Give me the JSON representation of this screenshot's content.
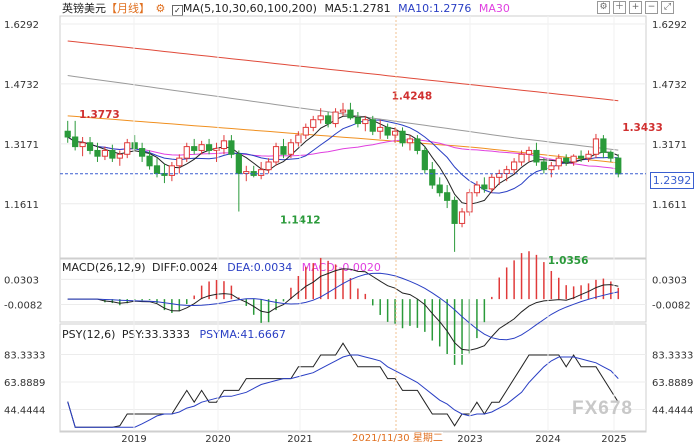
{
  "header": {
    "symbol": "英镑美元",
    "period": "【月线】",
    "ma_label": "MA(5,10,30,60,100,200)",
    "ma5": "MA5:1.2781",
    "ma10": "MA10:1.2776",
    "ma30": "MA30"
  },
  "macd_header": {
    "name": "MACD(26,12,9)",
    "diff": "DIFF:0.0024",
    "dea": "DEA:0.0034",
    "macd": "MACD:-0.0020"
  },
  "psy_header": {
    "name": "PSY(12,6)",
    "psy": "PSY:33.3333",
    "psyma": "PSYMA:41.6667"
  },
  "watermark": "FX678",
  "crosshair_date": "2021/11/30 星期二",
  "icons": [
    "settings-icon",
    "crosshair-icon",
    "zoom-in-icon",
    "zoom-out-icon",
    "expand-icon"
  ],
  "colors": {
    "up": "#e03a3a",
    "down": "#2a9a3a",
    "ma5": "#222222",
    "ma10": "#2a3fc4",
    "ma30": "#e040e0",
    "ma60": "#f09020",
    "ma100": "#9a9a9a",
    "ma200": "#e04a3a"
  },
  "chart_data": [
    {
      "type": "candlestick",
      "title": "英镑美元【月线】",
      "y_ticks": [
        "1.6292",
        "1.4732",
        "1.3171",
        "1.1611"
      ],
      "ylim": [
        1.02,
        1.65
      ],
      "x_ticks": [
        "2019",
        "2020",
        "2021",
        "2023",
        "2024",
        "2025"
      ],
      "current_price": "1.2392",
      "annotations": [
        {
          "label": "1.3773",
          "value": 1.3773,
          "index": 1
        },
        {
          "label": "1.1412",
          "value": 1.1412,
          "index": 28
        },
        {
          "label": "1.4248",
          "value": 1.4248,
          "index": 43
        },
        {
          "label": "1.0356",
          "value": 1.0356,
          "index": 64
        },
        {
          "label": "1.3433",
          "value": 1.3433,
          "index": 92
        }
      ],
      "series": [
        {
          "name": "MA5",
          "value": "1.2781"
        },
        {
          "name": "MA10",
          "value": "1.2776"
        },
        {
          "name": "MA30"
        }
      ],
      "ohlc": [
        [
          1.35,
          1.377,
          1.32,
          1.335
        ],
        [
          1.335,
          1.377,
          1.3,
          1.31
        ],
        [
          1.31,
          1.335,
          1.285,
          1.32
        ],
        [
          1.32,
          1.335,
          1.29,
          1.3
        ],
        [
          1.3,
          1.32,
          1.27,
          1.285
        ],
        [
          1.285,
          1.31,
          1.275,
          1.3
        ],
        [
          1.3,
          1.315,
          1.27,
          1.28
        ],
        [
          1.28,
          1.3,
          1.26,
          1.29
        ],
        [
          1.29,
          1.33,
          1.28,
          1.32
        ],
        [
          1.32,
          1.34,
          1.3,
          1.305
        ],
        [
          1.305,
          1.32,
          1.27,
          1.285
        ],
        [
          1.285,
          1.3,
          1.25,
          1.26
        ],
        [
          1.26,
          1.28,
          1.23,
          1.24
        ],
        [
          1.24,
          1.265,
          1.215,
          1.235
        ],
        [
          1.235,
          1.27,
          1.22,
          1.26
        ],
        [
          1.26,
          1.29,
          1.24,
          1.28
        ],
        [
          1.28,
          1.32,
          1.27,
          1.31
        ],
        [
          1.31,
          1.33,
          1.29,
          1.3
        ],
        [
          1.3,
          1.325,
          1.29,
          1.315
        ],
        [
          1.315,
          1.33,
          1.29,
          1.3
        ],
        [
          1.3,
          1.32,
          1.27,
          1.305
        ],
        [
          1.305,
          1.34,
          1.29,
          1.325
        ],
        [
          1.325,
          1.34,
          1.28,
          1.29
        ],
        [
          1.29,
          1.3,
          1.141,
          1.24
        ],
        [
          1.24,
          1.26,
          1.22,
          1.245
        ],
        [
          1.245,
          1.26,
          1.23,
          1.235
        ],
        [
          1.235,
          1.27,
          1.225,
          1.25
        ],
        [
          1.25,
          1.28,
          1.24,
          1.27
        ],
        [
          1.27,
          1.32,
          1.26,
          1.31
        ],
        [
          1.31,
          1.33,
          1.28,
          1.29
        ],
        [
          1.29,
          1.33,
          1.28,
          1.32
        ],
        [
          1.32,
          1.35,
          1.31,
          1.34
        ],
        [
          1.34,
          1.37,
          1.33,
          1.36
        ],
        [
          1.36,
          1.39,
          1.35,
          1.38
        ],
        [
          1.38,
          1.41,
          1.37,
          1.39
        ],
        [
          1.39,
          1.4,
          1.36,
          1.37
        ],
        [
          1.37,
          1.41,
          1.36,
          1.4
        ],
        [
          1.4,
          1.424,
          1.39,
          1.405
        ],
        [
          1.405,
          1.424,
          1.38,
          1.385
        ],
        [
          1.385,
          1.4,
          1.36,
          1.37
        ],
        [
          1.37,
          1.39,
          1.35,
          1.38
        ],
        [
          1.38,
          1.39,
          1.34,
          1.35
        ],
        [
          1.35,
          1.38,
          1.33,
          1.36
        ],
        [
          1.36,
          1.37,
          1.33,
          1.34
        ],
        [
          1.34,
          1.36,
          1.32,
          1.35
        ],
        [
          1.35,
          1.36,
          1.31,
          1.32
        ],
        [
          1.32,
          1.34,
          1.3,
          1.33
        ],
        [
          1.33,
          1.34,
          1.29,
          1.3
        ],
        [
          1.3,
          1.31,
          1.24,
          1.25
        ],
        [
          1.25,
          1.27,
          1.2,
          1.21
        ],
        [
          1.21,
          1.23,
          1.18,
          1.19
        ],
        [
          1.19,
          1.21,
          1.15,
          1.17
        ],
        [
          1.17,
          1.18,
          1.036,
          1.11
        ],
        [
          1.11,
          1.15,
          1.1,
          1.14
        ],
        [
          1.14,
          1.2,
          1.13,
          1.19
        ],
        [
          1.19,
          1.22,
          1.18,
          1.21
        ],
        [
          1.21,
          1.23,
          1.19,
          1.2
        ],
        [
          1.2,
          1.24,
          1.19,
          1.23
        ],
        [
          1.23,
          1.25,
          1.21,
          1.24
        ],
        [
          1.24,
          1.26,
          1.22,
          1.25
        ],
        [
          1.25,
          1.28,
          1.24,
          1.27
        ],
        [
          1.27,
          1.3,
          1.26,
          1.29
        ],
        [
          1.29,
          1.31,
          1.27,
          1.3
        ],
        [
          1.3,
          1.32,
          1.26,
          1.27
        ],
        [
          1.27,
          1.28,
          1.24,
          1.25
        ],
        [
          1.25,
          1.27,
          1.23,
          1.26
        ],
        [
          1.26,
          1.29,
          1.25,
          1.28
        ],
        [
          1.28,
          1.29,
          1.26,
          1.27
        ],
        [
          1.27,
          1.29,
          1.26,
          1.285
        ],
        [
          1.285,
          1.3,
          1.27,
          1.28
        ],
        [
          1.28,
          1.3,
          1.27,
          1.29
        ],
        [
          1.29,
          1.343,
          1.28,
          1.33
        ],
        [
          1.33,
          1.34,
          1.28,
          1.295
        ],
        [
          1.295,
          1.3,
          1.27,
          1.28
        ],
        [
          1.28,
          1.29,
          1.23,
          1.239
        ]
      ]
    },
    {
      "type": "line",
      "title": "MACD(26,12,9)",
      "y_ticks": [
        "0.0303",
        "-0.0082"
      ],
      "series": [
        {
          "name": "DIFF",
          "value": "0.0024"
        },
        {
          "name": "DEA",
          "value": "0.0034"
        },
        {
          "name": "MACD",
          "value": "-0.0020"
        }
      ]
    },
    {
      "type": "line",
      "title": "PSY(12,6)",
      "y_ticks": [
        "83.3333",
        "63.8889",
        "44.4444"
      ],
      "ylim": [
        30,
        95
      ],
      "series": [
        {
          "name": "PSY",
          "value": "33.3333"
        },
        {
          "name": "PSYMA",
          "value": "41.6667"
        }
      ]
    }
  ]
}
